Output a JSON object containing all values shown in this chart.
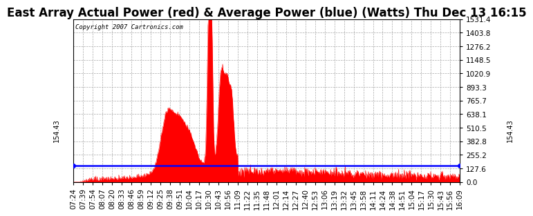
{
  "title": "East Array Actual Power (red) & Average Power (blue) (Watts) Thu Dec 13 16:15",
  "copyright": "Copyright 2007 Cartronics.com",
  "avg_power": 154.43,
  "ymax": 1531.4,
  "yticks": [
    0.0,
    127.6,
    255.2,
    382.8,
    510.5,
    638.1,
    765.7,
    893.3,
    1020.9,
    1148.5,
    1276.2,
    1403.8,
    1531.4
  ],
  "x_labels": [
    "07:24",
    "07:39",
    "07:54",
    "08:07",
    "08:20",
    "08:33",
    "08:46",
    "08:59",
    "09:12",
    "09:25",
    "09:38",
    "09:51",
    "10:04",
    "10:17",
    "10:30",
    "10:43",
    "10:56",
    "11:09",
    "11:22",
    "11:35",
    "11:48",
    "12:01",
    "12:14",
    "12:27",
    "12:40",
    "12:53",
    "13:06",
    "13:19",
    "13:32",
    "13:45",
    "13:58",
    "14:11",
    "14:24",
    "14:38",
    "14:51",
    "15:04",
    "15:17",
    "15:30",
    "15:43",
    "15:56",
    "16:09"
  ],
  "bg_color": "#ffffff",
  "grid_color": "#aaaaaa",
  "line_color_red": "#ff0000",
  "line_color_blue": "#0000ff",
  "title_fontsize": 12,
  "tick_fontsize": 7.5,
  "copyright_fontsize": 6.5,
  "avg_label_fontsize": 7,
  "avg_label": "154.43"
}
